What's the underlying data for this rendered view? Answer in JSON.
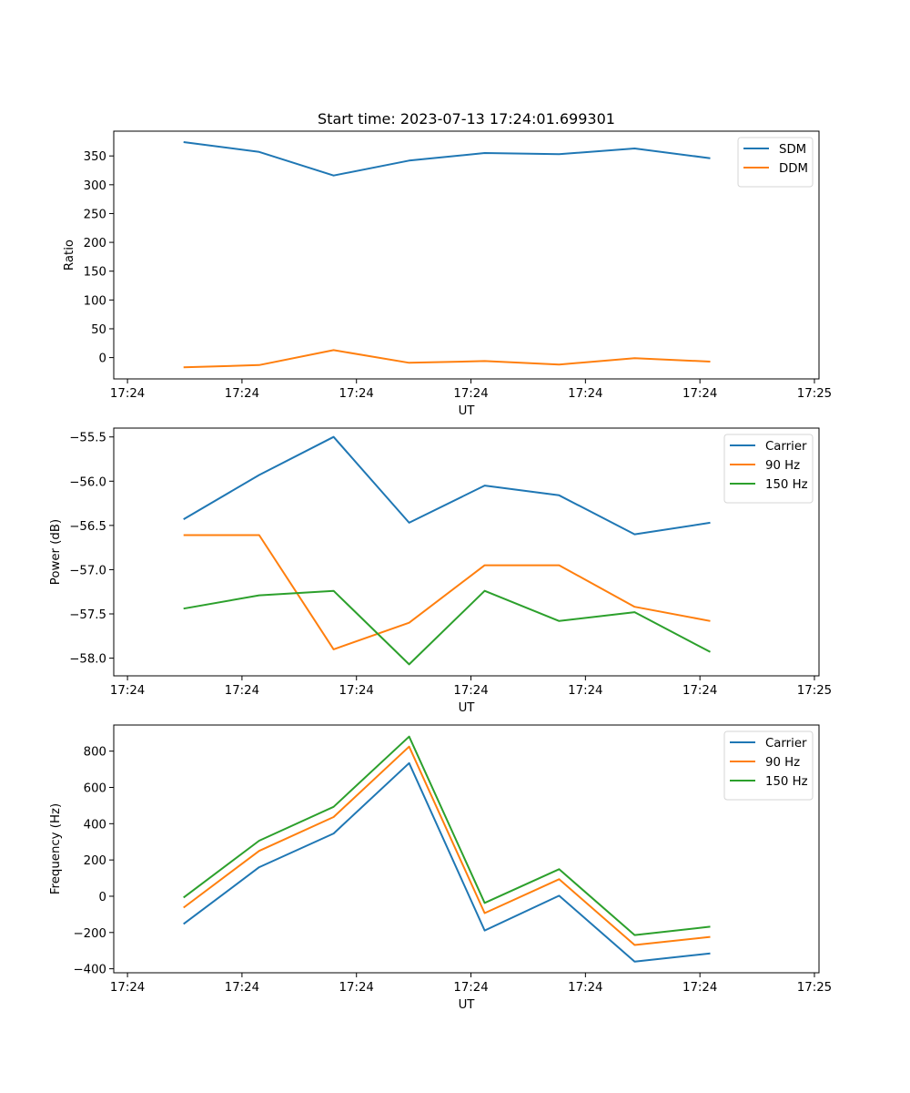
{
  "figure": {
    "title": "Start time: 2023-07-13 17:24:01.699301"
  },
  "chart_data": [
    {
      "type": "line",
      "title": "Start time: 2023-07-13 17:24:01.699301",
      "xlabel": "UT",
      "ylabel": "Ratio",
      "x_unit": "seconds after 17:24:00",
      "x": [
        4.9,
        11.5,
        18.0,
        24.6,
        31.2,
        37.7,
        44.3,
        50.9
      ],
      "xlim": [
        -1.2,
        60.4
      ],
      "x_ticks": [
        0,
        10,
        20,
        30,
        40,
        50,
        60
      ],
      "x_tick_labels": [
        "17:24",
        "17:24",
        "17:24",
        "17:24",
        "17:24",
        "17:24",
        "17:25"
      ],
      "ylim": [
        -37,
        393
      ],
      "y_ticks": [
        0,
        50,
        100,
        150,
        200,
        250,
        300,
        350
      ],
      "y_tick_labels": [
        "0",
        "50",
        "100",
        "150",
        "200",
        "250",
        "300",
        "350"
      ],
      "legend_position": "top-right",
      "grid": false,
      "series": [
        {
          "name": "SDM",
          "color": "#1f77b4",
          "values": [
            374,
            357,
            316,
            342,
            355,
            353,
            363,
            346
          ]
        },
        {
          "name": "DDM",
          "color": "#ff7f0e",
          "values": [
            -17,
            -13,
            13,
            -9,
            -6,
            -12,
            -1,
            -7
          ]
        }
      ]
    },
    {
      "type": "line",
      "title": "",
      "xlabel": "UT",
      "ylabel": "Power (dB)",
      "x_unit": "seconds after 17:24:00",
      "x": [
        4.9,
        11.5,
        18.0,
        24.6,
        31.2,
        37.7,
        44.3,
        50.9
      ],
      "xlim": [
        -1.2,
        60.4
      ],
      "x_ticks": [
        0,
        10,
        20,
        30,
        40,
        50,
        60
      ],
      "x_tick_labels": [
        "17:24",
        "17:24",
        "17:24",
        "17:24",
        "17:24",
        "17:24",
        "17:25"
      ],
      "ylim": [
        -58.2,
        -55.4
      ],
      "y_ticks": [
        -58.0,
        -57.5,
        -57.0,
        -56.5,
        -56.0,
        -55.5
      ],
      "y_tick_labels": [
        "−58.0",
        "−57.5",
        "−57.0",
        "−56.5",
        "−56.0",
        "−55.5"
      ],
      "legend_position": "top-right",
      "grid": false,
      "series": [
        {
          "name": "Carrier",
          "color": "#1f77b4",
          "values": [
            -56.43,
            -55.93,
            -55.5,
            -56.47,
            -56.05,
            -56.16,
            -56.6,
            -56.47
          ]
        },
        {
          "name": "90 Hz",
          "color": "#ff7f0e",
          "values": [
            -56.61,
            -56.61,
            -57.9,
            -57.6,
            -56.95,
            -56.95,
            -57.42,
            -57.58
          ]
        },
        {
          "name": "150 Hz",
          "color": "#2ca02c",
          "values": [
            -57.44,
            -57.29,
            -57.24,
            -58.07,
            -57.24,
            -57.58,
            -57.48,
            -57.93
          ]
        }
      ]
    },
    {
      "type": "line",
      "title": "",
      "xlabel": "UT",
      "ylabel": "Frequency (Hz)",
      "x_unit": "seconds after 17:24:00",
      "x": [
        4.9,
        11.5,
        18.0,
        24.6,
        31.2,
        37.7,
        44.3,
        50.9
      ],
      "xlim": [
        -1.2,
        60.4
      ],
      "x_ticks": [
        0,
        10,
        20,
        30,
        40,
        50,
        60
      ],
      "x_tick_labels": [
        "17:24",
        "17:24",
        "17:24",
        "17:24",
        "17:24",
        "17:24",
        "17:25"
      ],
      "ylim": [
        -422,
        944
      ],
      "y_ticks": [
        -400,
        -200,
        0,
        200,
        400,
        600,
        800
      ],
      "y_tick_labels": [
        "−400",
        "−200",
        "0",
        "200",
        "400",
        "600",
        "800"
      ],
      "legend_position": "top-right",
      "grid": false,
      "series": [
        {
          "name": "Carrier",
          "color": "#1f77b4",
          "values": [
            -153,
            160,
            346,
            734,
            -189,
            3,
            -360,
            -315
          ]
        },
        {
          "name": "90 Hz",
          "color": "#ff7f0e",
          "values": [
            -63,
            250,
            437,
            825,
            -93,
            94,
            -269,
            -224
          ]
        },
        {
          "name": "150 Hz",
          "color": "#2ca02c",
          "values": [
            -7,
            306,
            493,
            880,
            -37,
            149,
            -214,
            -168
          ]
        }
      ]
    }
  ]
}
